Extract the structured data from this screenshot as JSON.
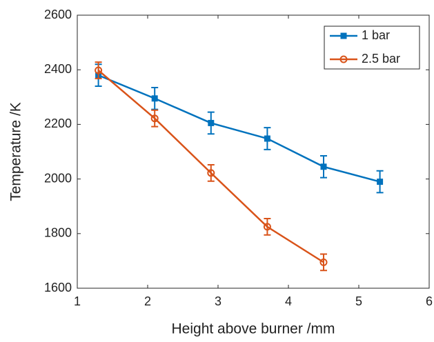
{
  "chart_data": {
    "type": "line",
    "xlabel": "Height above burner /mm",
    "ylabel": "Temperature /K",
    "xlim": [
      1,
      6
    ],
    "xticks": [
      1,
      2,
      3,
      4,
      5,
      6
    ],
    "ylim": [
      1600,
      2600
    ],
    "yticks": [
      1600,
      1800,
      2000,
      2200,
      2400,
      2600
    ],
    "grid": false,
    "legend": "upper right",
    "series": [
      {
        "name": "1 bar",
        "color": "#0072BD",
        "marker": "square",
        "x": [
          1.3,
          2.1,
          2.9,
          3.7,
          4.5,
          5.3
        ],
        "values": [
          2380,
          2295,
          2205,
          2148,
          2045,
          1990
        ],
        "errors": [
          40,
          40,
          40,
          40,
          40,
          40
        ]
      },
      {
        "name": "2.5 bar",
        "color": "#D95319",
        "marker": "circle",
        "x": [
          1.3,
          2.1,
          2.9,
          3.7,
          4.5
        ],
        "values": [
          2398,
          2222,
          2022,
          1825,
          1695
        ],
        "errors": [
          30,
          30,
          30,
          30,
          30
        ]
      }
    ]
  }
}
